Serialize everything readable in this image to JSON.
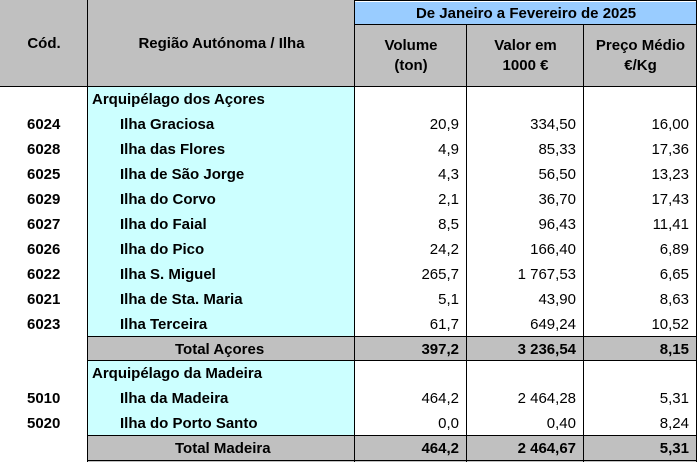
{
  "header": {
    "period": "De Janeiro a Fevereiro de 2025",
    "code_col": "Cód.",
    "region_col": "Região Autónoma / Ilha",
    "volume_col_l1": "Volume",
    "volume_col_l2": "(ton)",
    "value_col_l1": "Valor em",
    "value_col_l2": "1000 €",
    "price_col_l1": "Preço Médio",
    "price_col_l2": "€/Kg"
  },
  "groups": [
    {
      "name": "Arquipélago dos Açores",
      "rows": [
        {
          "code": "6024",
          "island": "Ilha Graciosa",
          "volume": "20,9",
          "value": "334,50",
          "price": "16,00"
        },
        {
          "code": "6028",
          "island": "Ilha das Flores",
          "volume": "4,9",
          "value": "85,33",
          "price": "17,36"
        },
        {
          "code": "6025",
          "island": "Ilha de São Jorge",
          "volume": "4,3",
          "value": "56,50",
          "price": "13,23"
        },
        {
          "code": "6029",
          "island": "Ilha do Corvo",
          "volume": "2,1",
          "value": "36,70",
          "price": "17,43"
        },
        {
          "code": "6027",
          "island": "Ilha do Faial",
          "volume": "8,5",
          "value": "96,43",
          "price": "11,41"
        },
        {
          "code": "6026",
          "island": "Ilha do Pico",
          "volume": "24,2",
          "value": "166,40",
          "price": "6,89"
        },
        {
          "code": "6022",
          "island": "Ilha S. Miguel",
          "volume": "265,7",
          "value": "1 767,53",
          "price": "6,65"
        },
        {
          "code": "6021",
          "island": "Ilha de Sta. Maria",
          "volume": "5,1",
          "value": "43,90",
          "price": "8,63"
        },
        {
          "code": "6023",
          "island": "Ilha Terceira",
          "volume": "61,7",
          "value": "649,24",
          "price": "10,52"
        }
      ],
      "total": {
        "label": "Total Açores",
        "volume": "397,2",
        "value": "3 236,54",
        "price": "8,15"
      }
    },
    {
      "name": "Arquipélago da Madeira",
      "rows": [
        {
          "code": "5010",
          "island": "Ilha da Madeira",
          "volume": "464,2",
          "value": "2 464,28",
          "price": "5,31"
        },
        {
          "code": "5020",
          "island": "Ilha do Porto Santo",
          "volume": "0,0",
          "value": "0,40",
          "price": "8,24"
        }
      ],
      "total": {
        "label": "Total Madeira",
        "volume": "464,2",
        "value": "2 464,67",
        "price": "5,31"
      }
    }
  ],
  "colors": {
    "header_band": "#99ccff",
    "region_fill": "#ccffff",
    "total_fill": "#c0c0c0"
  }
}
